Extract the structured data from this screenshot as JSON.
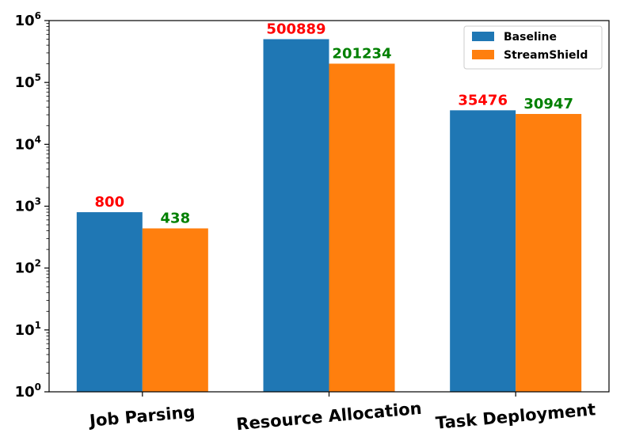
{
  "chart_data": {
    "type": "bar",
    "yscale": "log",
    "ylim": [
      1,
      1000000
    ],
    "yticks": [
      {
        "value": 1,
        "base": "10",
        "exp": "0"
      },
      {
        "value": 10,
        "base": "10",
        "exp": "1"
      },
      {
        "value": 100,
        "base": "10",
        "exp": "2"
      },
      {
        "value": 1000,
        "base": "10",
        "exp": "3"
      },
      {
        "value": 10000,
        "base": "10",
        "exp": "4"
      },
      {
        "value": 100000,
        "base": "10",
        "exp": "5"
      },
      {
        "value": 1000000,
        "base": "10",
        "exp": "6"
      }
    ],
    "categories": [
      "Job Parsing",
      "Resource Allocation",
      "Task Deployment"
    ],
    "series": [
      {
        "name": "Baseline",
        "color": "#1f77b4",
        "label_color": "#ff0000",
        "values": [
          800,
          500889,
          35476
        ]
      },
      {
        "name": "StreamShield",
        "color": "#ff7f0e",
        "label_color": "#008000",
        "values": [
          438,
          201234,
          30947
        ]
      }
    ],
    "legend": {
      "position": "top-right"
    },
    "grid": false,
    "title": "",
    "xlabel": "",
    "ylabel": ""
  }
}
